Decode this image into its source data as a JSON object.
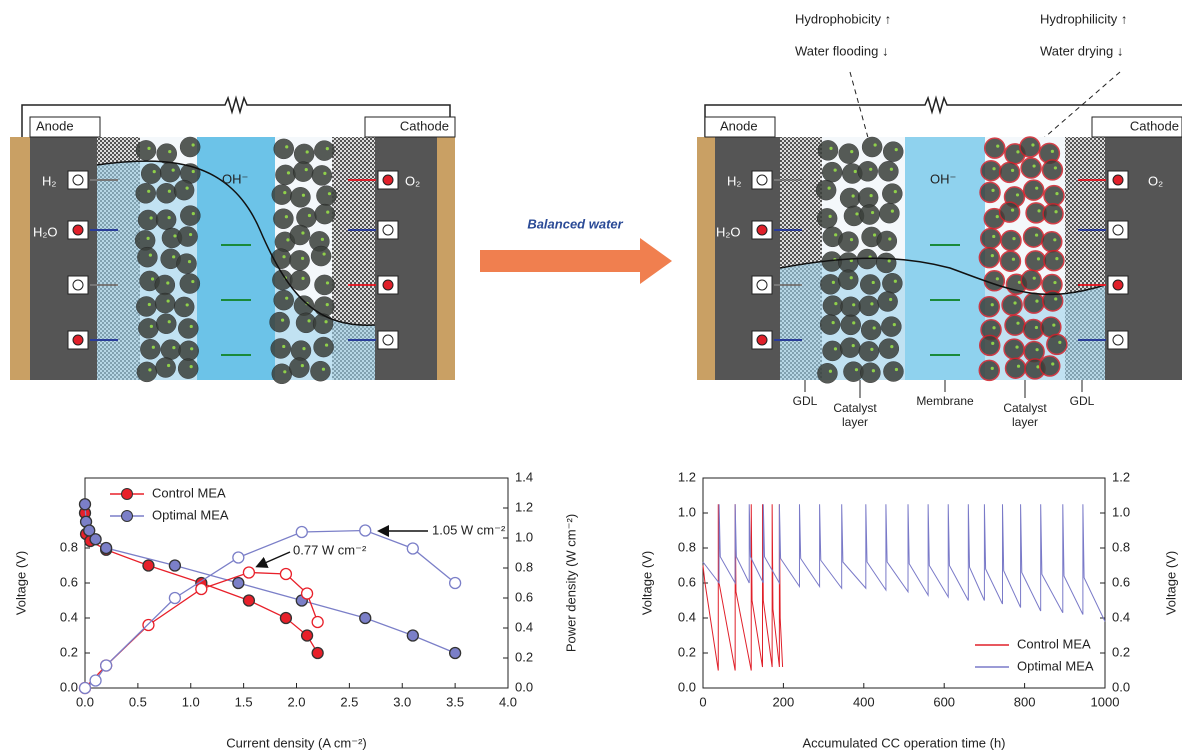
{
  "diagram_left": {
    "anode": "Anode",
    "cathode": "Cathode",
    "species": [
      "H₂",
      "H₂O",
      "O₂",
      "OH⁻"
    ]
  },
  "arrow_label": "Balanced water",
  "diagram_right": {
    "anode": "Anode",
    "cathode": "Cathode",
    "species": [
      "H₂",
      "H₂O",
      "O₂",
      "OH⁻"
    ],
    "annotations": [
      "Hydrophobicity ↑",
      "Water flooding ↓",
      "Hydrophilicity ↑",
      "Water drying ↓"
    ],
    "layers": [
      "GDL",
      "Catalyst layer",
      "Membrane",
      "Catalyst layer",
      "GDL"
    ]
  },
  "chart_data": [
    {
      "type": "line",
      "xlabel": "Current density (A cm⁻²)",
      "ylabel": "Voltage (V)",
      "y2label": "Power density (W cm⁻²)",
      "xlim": [
        0,
        4
      ],
      "ylim": [
        0,
        1.2
      ],
      "y2lim": [
        0,
        1.4
      ],
      "xticks": [
        {
          "value": 0,
          "label": "0.0"
        },
        {
          "value": 0.5,
          "label": "0.5"
        },
        {
          "value": 1,
          "label": "1.0"
        },
        {
          "value": 1.5,
          "label": "1.5"
        },
        {
          "value": 2,
          "label": "2.0"
        },
        {
          "value": 2.5,
          "label": "2.5"
        },
        {
          "value": 3,
          "label": "3.0"
        },
        {
          "value": 3.5,
          "label": "3.5"
        },
        {
          "value": 4,
          "label": "4.0"
        }
      ],
      "yticks": [
        {
          "value": 0,
          "label": "0.0"
        },
        0.2,
        0.4,
        0.6,
        0.8
      ],
      "y2ticks": [
        {
          "value": 0,
          "label": "0.0"
        },
        0.2,
        0.4,
        0.6,
        0.8,
        {
          "value": 1,
          "label": "1.0"
        },
        1.2,
        1.4
      ],
      "legend": "upper left",
      "annotations": [
        "0.77 W cm⁻²",
        "1.05 W cm⁻²"
      ],
      "series": [
        {
          "name": "Control MEA",
          "color": "#e8202a",
          "marker": "filled",
          "x": [
            0,
            0.01,
            0.05,
            0.2,
            0.6,
            1.1,
            1.55,
            1.9,
            2.1,
            2.2
          ],
          "values": [
            1.0,
            0.88,
            0.84,
            0.79,
            0.7,
            0.6,
            0.5,
            0.4,
            0.3,
            0.2
          ]
        },
        {
          "name": "Optimal MEA",
          "color": "#7b7fc8",
          "marker": "filled",
          "x": [
            0,
            0.01,
            0.04,
            0.1,
            0.2,
            0.85,
            1.45,
            2.05,
            2.65,
            3.1,
            3.5
          ],
          "values": [
            1.05,
            0.95,
            0.9,
            0.85,
            0.8,
            0.7,
            0.6,
            0.5,
            0.4,
            0.3,
            0.2
          ]
        },
        {
          "color": "#e8202a",
          "marker": "open",
          "axis": "y2",
          "x": [
            0,
            0.2,
            0.6,
            1.1,
            1.55,
            1.9,
            2.1,
            2.2
          ],
          "values": [
            0,
            0.15,
            0.42,
            0.66,
            0.77,
            0.76,
            0.63,
            0.44
          ]
        },
        {
          "color": "#7b7fc8",
          "marker": "open",
          "axis": "y2",
          "x": [
            0,
            0.1,
            0.2,
            0.85,
            1.45,
            2.05,
            2.65,
            3.1,
            3.5
          ],
          "values": [
            0,
            0.05,
            0.15,
            0.6,
            0.87,
            1.04,
            1.05,
            0.93,
            0.7
          ]
        }
      ]
    },
    {
      "type": "line",
      "xlabel": "Accumulated CC operation time (h)",
      "ylabel": "Voltage (V)",
      "y2label": "Voltage (V)",
      "xlim": [
        0,
        1000
      ],
      "ylim": [
        0,
        1.2
      ],
      "y2lim": [
        0,
        1.2
      ],
      "xticks": [
        0,
        200,
        400,
        600,
        800,
        1000
      ],
      "yticks": [
        {
          "value": 0,
          "label": "0.0"
        },
        0.2,
        0.4,
        0.6,
        0.8,
        {
          "value": 1,
          "label": "1.0"
        },
        1.2
      ],
      "y2ticks": [
        {
          "value": 0,
          "label": "0.0"
        },
        0.2,
        0.4,
        0.6,
        0.8,
        {
          "value": 1,
          "label": "1.0"
        },
        1.2
      ],
      "legend": "lower right",
      "series": [
        {
          "name": "Control MEA",
          "color": "#e0202a",
          "x": [
            0,
            5,
            38,
            38,
            40,
            80,
            80,
            82,
            120,
            120,
            122,
            148,
            148,
            150,
            172,
            172,
            174,
            190,
            190,
            192,
            198
          ],
          "values": [
            0.7,
            0.6,
            0.1,
            1.05,
            0.6,
            0.1,
            1.05,
            0.55,
            0.1,
            1.05,
            0.5,
            0.12,
            1.05,
            0.5,
            0.12,
            1.05,
            0.45,
            0.12,
            1.05,
            0.4,
            0.12
          ]
        },
        {
          "name": "Optimal MEA",
          "color": "#7a7ac8",
          "x": [
            0,
            40,
            40,
            43,
            80,
            80,
            83,
            115,
            115,
            118,
            150,
            150,
            153,
            190,
            190,
            193,
            240,
            240,
            243,
            290,
            290,
            293,
            345,
            345,
            348,
            405,
            405,
            408,
            455,
            455,
            458,
            510,
            510,
            513,
            560,
            560,
            563,
            610,
            610,
            613,
            660,
            660,
            663,
            700,
            700,
            703,
            745,
            745,
            748,
            790,
            790,
            793,
            840,
            840,
            843,
            895,
            895,
            898,
            945,
            945,
            948,
            1000
          ],
          "values": [
            0.72,
            0.6,
            1.05,
            0.75,
            0.6,
            1.05,
            0.75,
            0.6,
            1.05,
            0.75,
            0.6,
            1.05,
            0.75,
            0.6,
            1.05,
            0.74,
            0.58,
            1.05,
            0.74,
            0.58,
            1.05,
            0.73,
            0.57,
            1.05,
            0.72,
            0.57,
            1.05,
            0.72,
            0.56,
            1.05,
            0.72,
            0.55,
            1.05,
            0.71,
            0.53,
            1.05,
            0.7,
            0.52,
            1.05,
            0.7,
            0.5,
            1.05,
            0.69,
            0.5,
            1.05,
            0.68,
            0.48,
            1.05,
            0.67,
            0.46,
            1.05,
            0.66,
            0.44,
            1.05,
            0.65,
            0.43,
            1.05,
            0.64,
            0.42,
            1.05,
            0.63,
            0.38
          ]
        }
      ]
    }
  ]
}
